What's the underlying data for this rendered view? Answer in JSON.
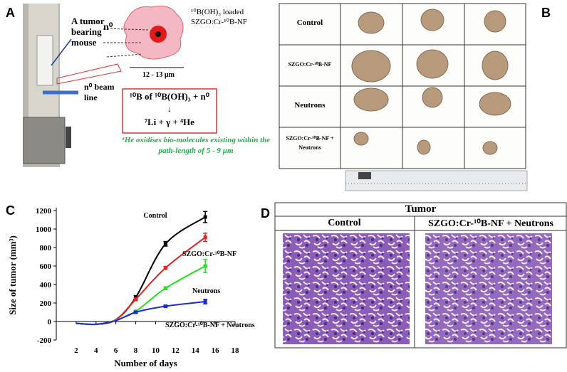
{
  "panel_labels": [
    "A",
    "B",
    "C",
    "D"
  ],
  "panel_a": {
    "mouse_label": "A tumor bearing mouse",
    "beam_label": "n⁰ beam line",
    "neutron": "n⁰",
    "particle_label": "¹⁰B(OH)₃ loaded SZGO:Cr-¹⁰B-NF",
    "size": "12 - 13 µm",
    "reaction_line1": "¹⁰B of ¹⁰B(OH)₃ + n⁰",
    "reaction_arrow": "↓",
    "reaction_line2": "⁷Li + γ + ⁴He",
    "note": "⁴He oxidises bio-molecules existing within the path-length of 5 - 9 µm"
  },
  "panel_b": {
    "rows": [
      "Control",
      "SZGO:Cr-¹⁰B-NF",
      "Neutrons",
      "SZGO:Cr-¹⁰B-NF + Neutrons"
    ]
  },
  "chart_data": {
    "type": "line",
    "xlabel": "Number of days",
    "ylabel": "Size of tumor (mm³)",
    "x": [
      2,
      4,
      6,
      8,
      11,
      15
    ],
    "series": [
      {
        "name": "Control",
        "color": "#000000",
        "values": [
          -20,
          -30,
          20,
          260,
          840,
          1130
        ],
        "errors": [
          null,
          null,
          null,
          20,
          25,
          60
        ]
      },
      {
        "name": "SZGO:Cr-¹⁰B-NF",
        "color": "#e0231c",
        "values": [
          -20,
          -30,
          20,
          240,
          580,
          910
        ],
        "errors": [
          null,
          null,
          null,
          15,
          15,
          45
        ]
      },
      {
        "name": "Neutrons",
        "color": "#22e01c",
        "values": [
          -20,
          -30,
          15,
          110,
          360,
          600
        ],
        "errors": [
          null,
          null,
          null,
          10,
          15,
          70
        ]
      },
      {
        "name": "SZGO:Cr-¹⁰B-NF + Neutrons",
        "color": "#1c2ad8",
        "values": [
          -20,
          -30,
          10,
          100,
          165,
          215
        ],
        "errors": [
          null,
          null,
          null,
          10,
          10,
          25
        ]
      }
    ],
    "xlim": [
      0,
      18
    ],
    "xticks": [
      2,
      4,
      6,
      8,
      10,
      12,
      14,
      16,
      18
    ],
    "ylim": [
      -200,
      1200
    ],
    "yticks": [
      -200,
      0,
      200,
      400,
      600,
      800,
      1000,
      1200
    ]
  },
  "panel_d": {
    "title": "Tumor",
    "columns": [
      "Control",
      "SZGO:Cr-¹⁰B-NF + Neutrons"
    ]
  }
}
